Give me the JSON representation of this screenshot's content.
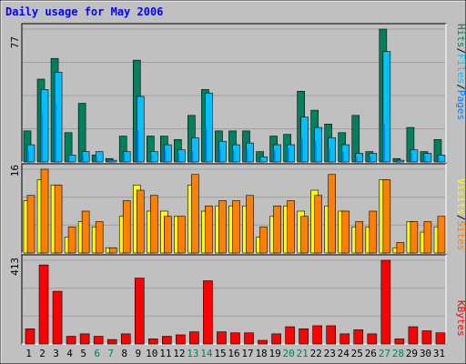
{
  "chart_data": [
    {
      "panel": "top",
      "type": "bar",
      "title": "Daily usage for May 2006",
      "ymax_label": "77",
      "categories": [
        "1",
        "2",
        "3",
        "4",
        "5",
        "6",
        "7",
        "8",
        "9",
        "10",
        "11",
        "12",
        "13",
        "14",
        "15",
        "16",
        "17",
        "18",
        "19",
        "20",
        "21",
        "22",
        "23",
        "24",
        "25",
        "26",
        "27",
        "28",
        "29",
        "30",
        "31"
      ],
      "series": [
        {
          "name": "Hits",
          "color": "#00805c",
          "values": [
            18,
            48,
            60,
            17,
            34,
            4,
            2,
            15,
            59,
            15,
            15,
            13,
            27,
            42,
            18,
            18,
            18,
            6,
            15,
            16,
            41,
            30,
            22,
            17,
            27,
            6,
            77,
            2,
            20,
            6,
            13
          ]
        },
        {
          "name": "Files",
          "color": "#00c0ff",
          "values": [
            10,
            42,
            52,
            4,
            6,
            6,
            1,
            6,
            38,
            6,
            10,
            7,
            14,
            40,
            12,
            10,
            11,
            3,
            10,
            10,
            26,
            20,
            14,
            10,
            5,
            5,
            64,
            1,
            7,
            5,
            4
          ]
        },
        {
          "name": "Pages",
          "color": "#0080ff",
          "values": [
            6,
            28,
            34,
            3,
            4,
            3,
            1,
            5,
            18,
            4,
            7,
            5,
            6,
            20,
            8,
            7,
            7,
            2,
            7,
            8,
            14,
            12,
            8,
            6,
            3,
            3,
            22,
            0,
            5,
            3,
            3
          ]
        }
      ],
      "ylabel_parts": [
        "Pages",
        "/",
        "Files",
        "/",
        "Hits"
      ]
    },
    {
      "panel": "middle",
      "type": "bar",
      "ymax_label": "16",
      "categories": [
        "1",
        "2",
        "3",
        "4",
        "5",
        "6",
        "7",
        "8",
        "9",
        "10",
        "11",
        "12",
        "13",
        "14",
        "15",
        "16",
        "17",
        "18",
        "19",
        "20",
        "21",
        "22",
        "23",
        "24",
        "25",
        "26",
        "27",
        "28",
        "29",
        "30",
        "31"
      ],
      "series": [
        {
          "name": "Visits",
          "color": "#ffff00",
          "values": [
            10,
            14,
            13,
            3,
            6,
            5,
            1,
            7,
            13,
            8,
            8,
            7,
            13,
            8,
            9,
            9,
            9,
            3,
            7,
            9,
            8,
            12,
            9,
            8,
            5,
            5,
            14,
            1,
            6,
            4,
            5
          ]
        },
        {
          "name": "Sites",
          "color": "#ff8000",
          "values": [
            11,
            16,
            13,
            5,
            8,
            6,
            1,
            10,
            12,
            11,
            7,
            7,
            15,
            9,
            10,
            10,
            11,
            5,
            9,
            10,
            7,
            11,
            15,
            8,
            6,
            8,
            14,
            2,
            6,
            6,
            7
          ]
        }
      ],
      "ylabel_parts": [
        "Sites",
        "/",
        "Visits"
      ]
    },
    {
      "panel": "bottom",
      "type": "bar",
      "ymax_label": "413",
      "categories": [
        "1",
        "2",
        "3",
        "4",
        "5",
        "6",
        "7",
        "8",
        "9",
        "10",
        "11",
        "12",
        "13",
        "14",
        "15",
        "16",
        "17",
        "18",
        "19",
        "20",
        "21",
        "22",
        "23",
        "24",
        "25",
        "26",
        "27",
        "28",
        "29",
        "30",
        "31"
      ],
      "series": [
        {
          "name": "KBytes",
          "color": "#ff0000",
          "values": [
            75,
            390,
            260,
            38,
            50,
            38,
            22,
            50,
            325,
            25,
            38,
            45,
            60,
            312,
            60,
            55,
            55,
            18,
            50,
            85,
            75,
            90,
            90,
            50,
            70,
            50,
            413,
            25,
            85,
            65,
            55
          ]
        }
      ],
      "ylabel_parts": [
        "KBytes"
      ]
    }
  ],
  "weekend_days": [
    6,
    7,
    13,
    14,
    20,
    21,
    27,
    28
  ],
  "colors": {
    "outer_bg": "#c0c0c0",
    "plot_bg": "#c0c0c0",
    "title": "#0000ff",
    "hits": "#00805c",
    "files": "#00c0ff",
    "pages": "#0080ff",
    "visits": "#ffff00",
    "sites": "#ff8000",
    "kbytes": "#ff0000",
    "weekend_label": "#00805c",
    "weekday_label": "#000000"
  }
}
